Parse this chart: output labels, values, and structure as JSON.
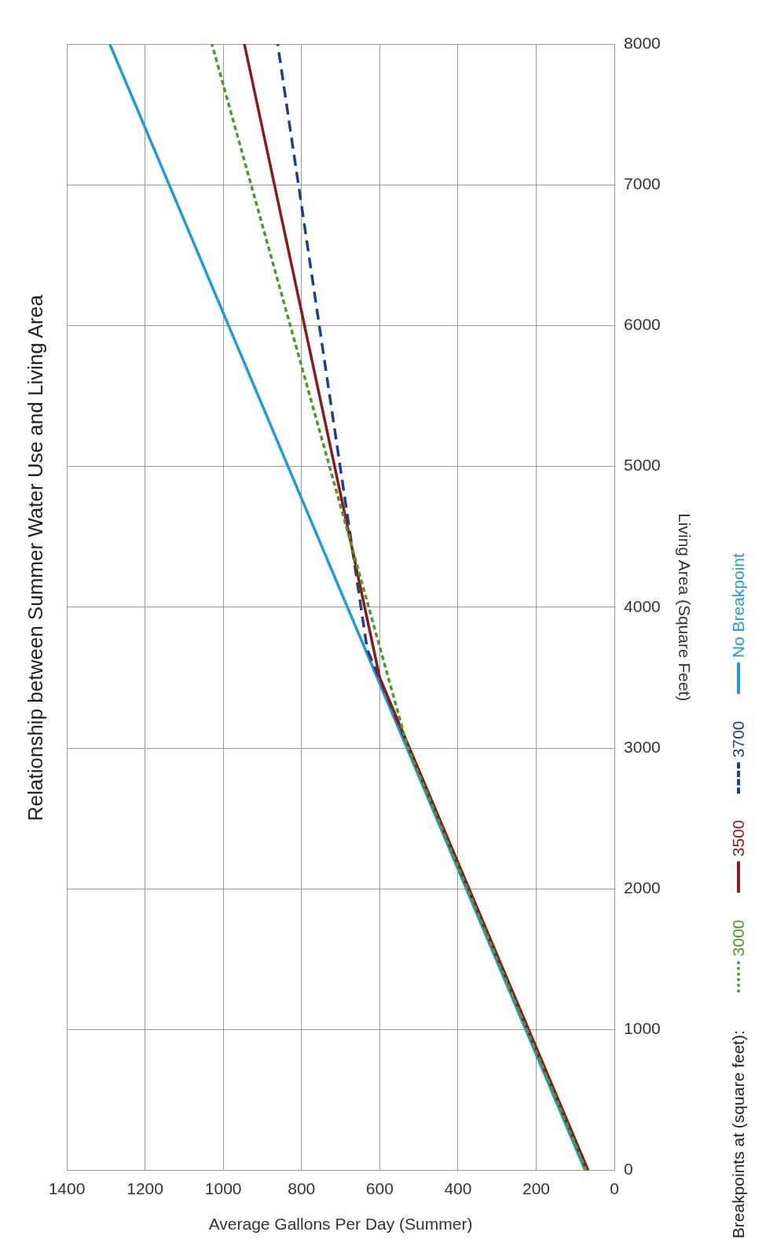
{
  "chart_data": {
    "type": "line",
    "title": "Relationship between Summer Water Use and Living Area",
    "xlabel": "Average Gallons Per Day (Summer)",
    "ylabel": "Living Area (Square Feet)",
    "legend_title": "Breakpoints at (square feet):",
    "legend": "right",
    "grid": true,
    "marker": "none",
    "xlim": [
      1400,
      0
    ],
    "xticks": [
      0,
      200,
      400,
      600,
      800,
      1000,
      1200,
      1400
    ],
    "ylim": [
      0,
      8000
    ],
    "yticks": [
      0,
      1000,
      2000,
      3000,
      4000,
      5000,
      6000,
      7000,
      8000
    ],
    "series": [
      {
        "name": "3000",
        "color": "#4e9a28",
        "line_style": "dotted",
        "x": [
          72,
          528,
          1029
        ],
        "values": [
          0,
          3000,
          8000
        ]
      },
      {
        "name": "3500",
        "color": "#8b1a1a",
        "line_style": "solid",
        "x": [
          67,
          600,
          946
        ],
        "values": [
          0,
          3500,
          8000
        ]
      },
      {
        "name": "3700",
        "color": "#1f3f8f",
        "line_style": "dashed",
        "x": [
          70,
          632,
          861
        ],
        "values": [
          0,
          3700,
          8000
        ]
      },
      {
        "name": "No Breakpoint",
        "color": "#1e9be0",
        "line_style": "solid",
        "x": [
          75,
          1290
        ],
        "values": [
          0,
          8000
        ]
      }
    ]
  }
}
